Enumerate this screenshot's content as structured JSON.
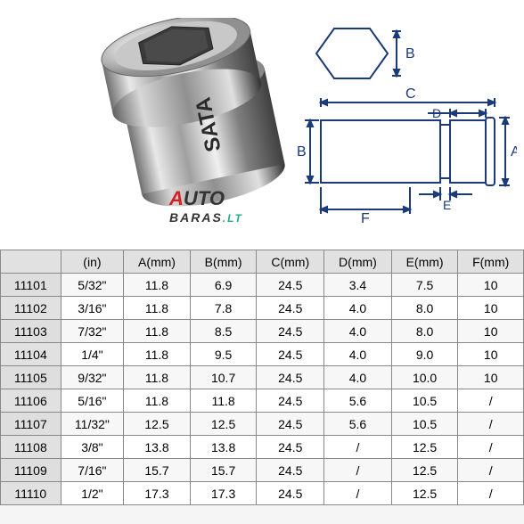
{
  "watermark": {
    "a": "A",
    "uto": "UTO",
    "baras": "BARAS",
    "lt": ".LT"
  },
  "diagram_labels": {
    "A": "A",
    "B": "B",
    "C": "C",
    "D": "D",
    "E": "E",
    "F": "F"
  },
  "socket_text": "SATA",
  "table": {
    "headers": [
      "",
      "(in)",
      "A(mm)",
      "B(mm)",
      "C(mm)",
      "D(mm)",
      "E(mm)",
      "F(mm)"
    ],
    "rows": [
      [
        "11101",
        "5/32\"",
        "11.8",
        "6.9",
        "24.5",
        "3.4",
        "7.5",
        "10"
      ],
      [
        "11102",
        "3/16\"",
        "11.8",
        "7.8",
        "24.5",
        "4.0",
        "8.0",
        "10"
      ],
      [
        "11103",
        "7/32\"",
        "11.8",
        "8.5",
        "24.5",
        "4.0",
        "8.0",
        "10"
      ],
      [
        "11104",
        "1/4\"",
        "11.8",
        "9.5",
        "24.5",
        "4.0",
        "9.0",
        "10"
      ],
      [
        "11105",
        "9/32\"",
        "11.8",
        "10.7",
        "24.5",
        "4.0",
        "10.0",
        "10"
      ],
      [
        "11106",
        "5/16\"",
        "11.8",
        "11.8",
        "24.5",
        "5.6",
        "10.5",
        "/"
      ],
      [
        "11107",
        "11/32\"",
        "12.5",
        "12.5",
        "24.5",
        "5.6",
        "10.5",
        "/"
      ],
      [
        "11108",
        "3/8\"",
        "13.8",
        "13.8",
        "24.5",
        "/",
        "12.5",
        "/"
      ],
      [
        "11109",
        "7/16\"",
        "15.7",
        "15.7",
        "24.5",
        "/",
        "12.5",
        "/"
      ],
      [
        "11110",
        "1/2\"",
        "17.3",
        "17.3",
        "24.5",
        "/",
        "12.5",
        "/"
      ]
    ],
    "header_bg": "#e1e1e1",
    "border_color": "#888888",
    "font_size": 14
  }
}
